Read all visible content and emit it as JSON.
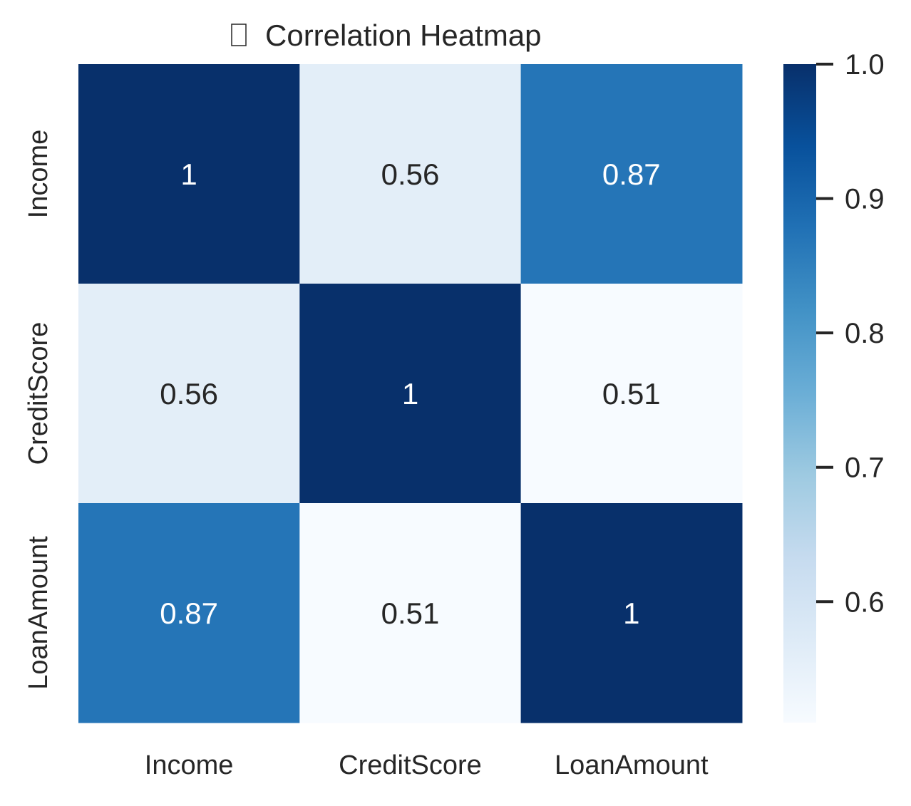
{
  "chart_data": {
    "type": "heatmap",
    "title": "Correlation Heatmap",
    "title_icon": "chart-icon",
    "xlabel": "",
    "ylabel": "",
    "x_categories": [
      "Income",
      "CreditScore",
      "LoanAmount"
    ],
    "y_categories": [
      "Income",
      "CreditScore",
      "LoanAmount"
    ],
    "matrix": [
      [
        1.0,
        0.56,
        0.87
      ],
      [
        0.56,
        1.0,
        0.51
      ],
      [
        0.87,
        0.51,
        1.0
      ]
    ],
    "annotations": [
      [
        "1",
        "0.56",
        "0.87"
      ],
      [
        "0.56",
        "1",
        "0.51"
      ],
      [
        "0.87",
        "0.51",
        "1"
      ]
    ],
    "colormap": "Blues",
    "colorbar": {
      "min": 0.51,
      "max": 1.0,
      "ticks": [
        0.6,
        0.7,
        0.8,
        0.9,
        1.0
      ],
      "tick_labels": [
        "0.6",
        "0.7",
        "0.8",
        "0.9",
        "1.0"
      ]
    },
    "colors": {
      "text_dark": "#262626",
      "text_light": "#ffffff",
      "background": "#ffffff"
    },
    "grid": false,
    "legend": "colorbar-right"
  }
}
